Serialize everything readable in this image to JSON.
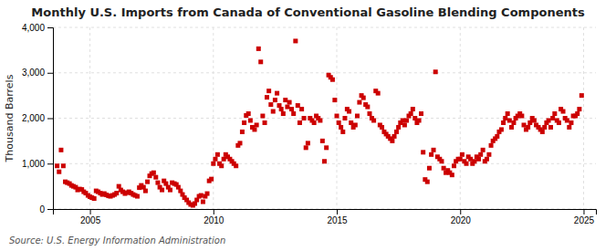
{
  "chart_data": {
    "type": "scatter",
    "title": "Monthly U.S. Imports from Canada of Conventional Gasoline Blending Components",
    "ylabel": "Thousand Barrels",
    "source": "Source: U.S. Energy Information Administration",
    "color": "#cc0000",
    "marker": "square",
    "grid": true,
    "xlim": [
      2003.5,
      2025.5
    ],
    "xticks": [
      2005,
      2010,
      2015,
      2020,
      2025
    ],
    "ylim": [
      0,
      4000
    ],
    "yticks": [
      0,
      {
        "value": 1000,
        "label": "1,000"
      },
      {
        "value": 2000,
        "label": "2,000"
      },
      {
        "value": 3000,
        "label": "3,000"
      },
      {
        "value": 4000,
        "label": "4,000"
      }
    ],
    "x": [
      2003.67,
      2003.75,
      2003.83,
      2003.92,
      2004.0,
      2004.08,
      2004.17,
      2004.25,
      2004.33,
      2004.42,
      2004.5,
      2004.58,
      2004.67,
      2004.75,
      2004.83,
      2004.92,
      2005.0,
      2005.08,
      2005.17,
      2005.25,
      2005.33,
      2005.42,
      2005.5,
      2005.58,
      2005.67,
      2005.75,
      2005.83,
      2005.92,
      2006.0,
      2006.08,
      2006.17,
      2006.25,
      2006.33,
      2006.42,
      2006.5,
      2006.58,
      2006.67,
      2006.75,
      2006.83,
      2006.92,
      2007.0,
      2007.08,
      2007.17,
      2007.25,
      2007.33,
      2007.42,
      2007.5,
      2007.58,
      2007.67,
      2007.75,
      2007.83,
      2007.92,
      2008.0,
      2008.08,
      2008.17,
      2008.25,
      2008.33,
      2008.42,
      2008.5,
      2008.58,
      2008.67,
      2008.75,
      2008.83,
      2008.92,
      2009.0,
      2009.08,
      2009.17,
      2009.25,
      2009.33,
      2009.42,
      2009.5,
      2009.58,
      2009.67,
      2009.75,
      2009.83,
      2009.92,
      2010.0,
      2010.08,
      2010.17,
      2010.25,
      2010.33,
      2010.42,
      2010.5,
      2010.58,
      2010.67,
      2010.75,
      2010.83,
      2010.92,
      2011.0,
      2011.08,
      2011.17,
      2011.25,
      2011.33,
      2011.42,
      2011.5,
      2011.58,
      2011.67,
      2011.75,
      2011.83,
      2011.92,
      2012.0,
      2012.08,
      2012.17,
      2012.25,
      2012.33,
      2012.42,
      2012.5,
      2012.58,
      2012.67,
      2012.75,
      2012.83,
      2012.92,
      2013.0,
      2013.08,
      2013.17,
      2013.25,
      2013.33,
      2013.42,
      2013.5,
      2013.58,
      2013.67,
      2013.75,
      2013.83,
      2013.92,
      2014.0,
      2014.08,
      2014.17,
      2014.25,
      2014.33,
      2014.42,
      2014.5,
      2014.58,
      2014.67,
      2014.75,
      2014.83,
      2014.92,
      2015.0,
      2015.08,
      2015.17,
      2015.25,
      2015.33,
      2015.42,
      2015.5,
      2015.58,
      2015.67,
      2015.75,
      2015.83,
      2015.92,
      2016.0,
      2016.08,
      2016.17,
      2016.25,
      2016.33,
      2016.42,
      2016.5,
      2016.58,
      2016.67,
      2016.75,
      2016.83,
      2016.92,
      2017.0,
      2017.08,
      2017.17,
      2017.25,
      2017.33,
      2017.42,
      2017.5,
      2017.58,
      2017.67,
      2017.75,
      2017.83,
      2017.92,
      2018.0,
      2018.08,
      2018.17,
      2018.25,
      2018.33,
      2018.42,
      2018.5,
      2018.58,
      2018.67,
      2018.75,
      2018.83,
      2018.92,
      2019.0,
      2019.08,
      2019.17,
      2019.25,
      2019.33,
      2019.42,
      2019.5,
      2019.58,
      2019.67,
      2019.75,
      2019.83,
      2019.92,
      2020.0,
      2020.08,
      2020.17,
      2020.25,
      2020.33,
      2020.42,
      2020.5,
      2020.58,
      2020.67,
      2020.75,
      2020.83,
      2020.92,
      2021.0,
      2021.08,
      2021.17,
      2021.25,
      2021.33,
      2021.42,
      2021.5,
      2021.58,
      2021.67,
      2021.75,
      2021.83,
      2021.92,
      2022.0,
      2022.08,
      2022.17,
      2022.25,
      2022.33,
      2022.42,
      2022.5,
      2022.58,
      2022.67,
      2022.75,
      2022.83,
      2022.92,
      2023.0,
      2023.08,
      2023.17,
      2023.25,
      2023.33,
      2023.42,
      2023.5,
      2023.58,
      2023.67,
      2023.75,
      2023.83,
      2023.92,
      2024.0,
      2024.08,
      2024.17,
      2024.25,
      2024.33,
      2024.42,
      2024.5,
      2024.58,
      2024.67,
      2024.75,
      2024.83,
      2024.92
    ],
    "values": [
      950,
      820,
      1300,
      950,
      600,
      580,
      560,
      520,
      500,
      480,
      420,
      440,
      430,
      380,
      350,
      300,
      270,
      250,
      230,
      400,
      380,
      350,
      320,
      340,
      310,
      290,
      280,
      300,
      320,
      350,
      500,
      420,
      380,
      340,
      360,
      380,
      350,
      320,
      300,
      280,
      470,
      520,
      480,
      400,
      600,
      730,
      780,
      800,
      700,
      580,
      480,
      420,
      620,
      560,
      480,
      420,
      580,
      560,
      540,
      480,
      400,
      320,
      250,
      200,
      140,
      100,
      80,
      120,
      200,
      280,
      300,
      160,
      280,
      340,
      620,
      660,
      1000,
      1100,
      1200,
      1000,
      950,
      1100,
      1200,
      1150,
      1100,
      1050,
      1000,
      950,
      1400,
      1450,
      1700,
      1900,
      2060,
      2100,
      1950,
      1800,
      1750,
      1850,
      3530,
      3240,
      2050,
      1900,
      2460,
      2600,
      2300,
      2150,
      2400,
      2550,
      2280,
      2200,
      2100,
      2400,
      2250,
      2350,
      2200,
      2100,
      3700,
      2280,
      1900,
      2200,
      2000,
      1350,
      1450,
      2000,
      1950,
      1900,
      2050,
      2000,
      1950,
      1500,
      1050,
      1350,
      2950,
      2900,
      2850,
      2400,
      2050,
      1900,
      1800,
      1700,
      2000,
      2200,
      2150,
      1900,
      1800,
      1850,
      2050,
      2350,
      2500,
      2450,
      2300,
      2250,
      2100,
      2000,
      1950,
      2600,
      2550,
      1850,
      1800,
      1700,
      1650,
      1600,
      1550,
      1500,
      1600,
      1700,
      1800,
      1900,
      1950,
      1850,
      1950,
      2050,
      2100,
      2200,
      2000,
      1900,
      1950,
      2100,
      1250,
      650,
      600,
      900,
      1200,
      1300,
      3020,
      1150,
      1100,
      1050,
      900,
      800,
      850,
      800,
      750,
      950,
      1050,
      1100,
      1100,
      1200,
      1050,
      1000,
      1150,
      1100,
      1000,
      1050,
      1150,
      1100,
      1200,
      1300,
      1050,
      1100,
      1200,
      1400,
      1500,
      1550,
      1600,
      1700,
      1750,
      1900,
      2000,
      2100,
      1950,
      1800,
      1900,
      2000,
      2050,
      2100,
      2050,
      1850,
      1750,
      1800,
      1900,
      2000,
      1950,
      1850,
      1800,
      1750,
      1700,
      1800,
      1900,
      1950,
      1800,
      2000,
      2100,
      1950,
      1900,
      2200,
      2150,
      2000,
      1950,
      1800,
      1900,
      2050,
      2050,
      2100,
      2200,
      2500
    ]
  }
}
